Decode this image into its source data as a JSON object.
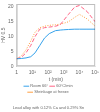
{
  "chart_data": {
    "type": "line",
    "xlabel": "t (min)",
    "ylabel": "HV 0.5",
    "subtitle": "Lead alloy with 0.12% Ca and 0.29% Sn",
    "log": "x",
    "grid": false,
    "legend": "bottom",
    "x": [
      1,
      2,
      4,
      8,
      15,
      30,
      60,
      120,
      300,
      600,
      1000,
      2000,
      5000,
      10000,
      30000,
      100000
    ],
    "xlim": [
      1,
      100000
    ],
    "xticks": [
      1,
      {
        "value": 10,
        "label": "10¹"
      },
      {
        "value": 100,
        "label": "10²"
      },
      {
        "value": 1000,
        "label": "10³"
      },
      {
        "value": 10000,
        "label": "10⁴"
      },
      {
        "value": 100000,
        "label": "10⁵"
      }
    ],
    "ylim": [
      0,
      21
    ],
    "yticks": [
      0,
      5,
      10,
      15,
      20
    ],
    "series": [
      {
        "name": "Room 66°",
        "line_style": "solid",
        "values": [
          2.5,
          2.6,
          2.8,
          3.2,
          4.5,
          7.0,
          9.5,
          11.0,
          12.0,
          12.2,
          12.3,
          12.4,
          12.5,
          12.5,
          12.5,
          12.5
        ]
      },
      {
        "name": "60°C/min",
        "line_style": "dashed",
        "values": [
          2.5,
          3.0,
          4.5,
          7.0,
          10.0,
          12.5,
          13.0,
          13.2,
          13.5,
          14.0,
          15.5,
          17.5,
          20.0,
          20.5,
          18.5,
          15.0
        ]
      },
      {
        "name": "Shrinkage at freeze",
        "line_style": "dotted",
        "values": [
          2.5,
          3.5,
          5.5,
          8.5,
          11.5,
          13.0,
          13.5,
          13.8,
          14.0,
          14.2,
          14.5,
          15.0,
          16.5,
          17.5,
          16.0,
          13.5
        ]
      }
    ]
  }
}
